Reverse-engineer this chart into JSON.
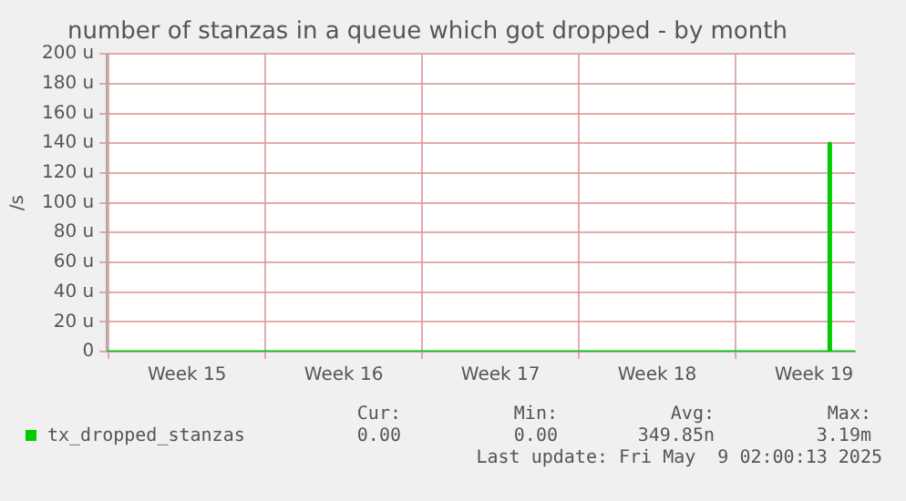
{
  "chart_data": {
    "type": "line",
    "title": "number of stanzas in a queue which got dropped - by month",
    "ylabel": "/s",
    "x": [
      "2025-04-06T22:00",
      "2025-05-09T04:00",
      "2025-05-09T04:00",
      "2025-05-09T06:00",
      "2025-05-09T06:00",
      "2025-05-10T08:00"
    ],
    "series": [
      {
        "name": "tx_dropped_stanzas",
        "color": "#00cc00",
        "values": [
          0,
          0,
          140,
          140,
          0,
          0
        ]
      }
    ],
    "xlim": [
      "2025-04-06T22:00",
      "2025-05-10T08:00"
    ],
    "xticks": [
      {
        "value": "2025-04-07",
        "label": null
      },
      {
        "value": "2025-04-10T12:00",
        "label": "Week 15"
      },
      {
        "value": "2025-04-14",
        "label": null
      },
      {
        "value": "2025-04-17T12:00",
        "label": "Week 16"
      },
      {
        "value": "2025-04-21",
        "label": null
      },
      {
        "value": "2025-04-24T12:00",
        "label": "Week 17"
      },
      {
        "value": "2025-04-28",
        "label": null
      },
      {
        "value": "2025-05-01T12:00",
        "label": "Week 18"
      },
      {
        "value": "2025-05-05",
        "label": null
      },
      {
        "value": "2025-05-08T12:00",
        "label": "Week 19"
      }
    ],
    "ylim": [
      0,
      200
    ],
    "yticks": [
      0,
      {
        "value": 20,
        "label": "20 u"
      },
      {
        "value": 40,
        "label": "40 u"
      },
      {
        "value": 60,
        "label": "60 u"
      },
      {
        "value": 80,
        "label": "80 u"
      },
      {
        "value": 100,
        "label": "100 u"
      },
      {
        "value": 120,
        "label": "120 u"
      },
      {
        "value": 140,
        "label": "140 u"
      },
      {
        "value": 160,
        "label": "160 u"
      },
      {
        "value": 180,
        "label": "180 u"
      },
      {
        "value": 200,
        "label": "200 u"
      }
    ],
    "grid": true,
    "legend": "bottom",
    "marker": "none",
    "line_style": "solid",
    "annotations": [
      "Cur:",
      "Min:",
      "Avg:",
      "Max:",
      "0.00",
      "0.00",
      "349.85n",
      "3.19m",
      "Last update: Fri May  9 02:00:13 2025"
    ]
  }
}
